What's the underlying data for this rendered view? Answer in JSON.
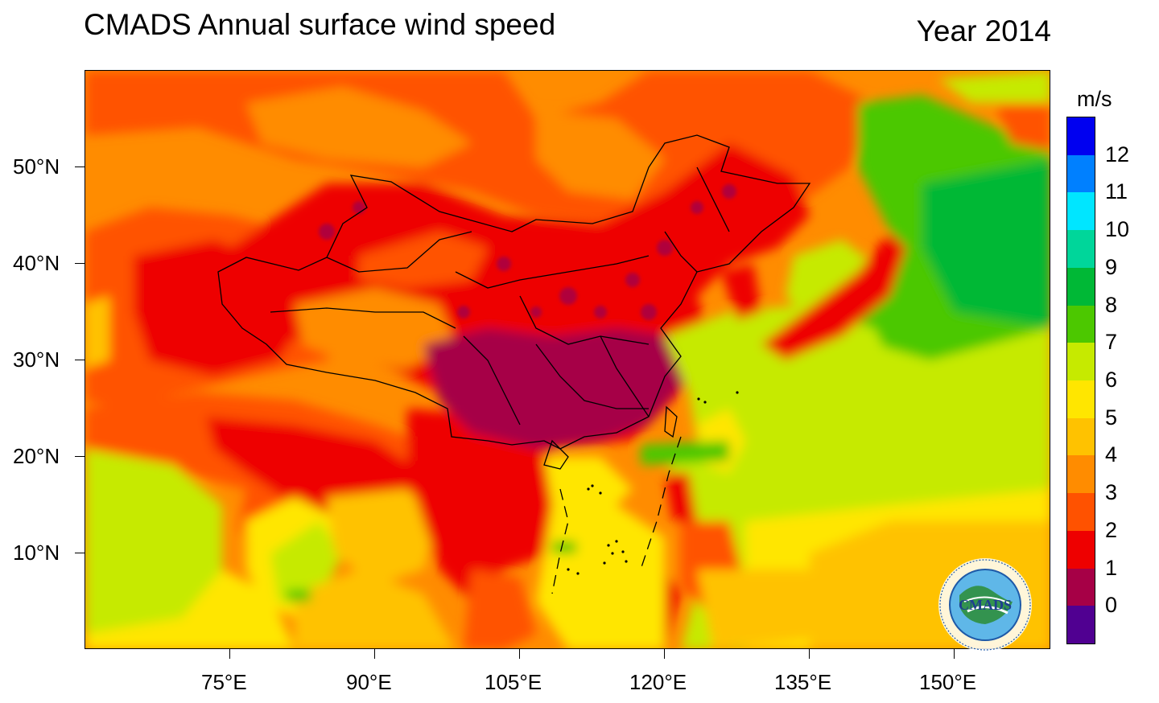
{
  "title": "CMADS Annual surface wind speed",
  "year_label": "Year 2014",
  "colorbar": {
    "unit": "m/s",
    "levels": [
      "12",
      "11",
      "10",
      "9",
      "8",
      "7",
      "6",
      "5",
      "4",
      "3",
      "2",
      "1",
      "0"
    ],
    "colors": [
      "#0000f0",
      "#0080ff",
      "#00e6ff",
      "#00d69a",
      "#00b836",
      "#4cc800",
      "#c6ea00",
      "#ffe600",
      "#ffc200",
      "#ff8c00",
      "#ff5200",
      "#ee0000",
      "#a60046",
      "#500091"
    ]
  },
  "axes": {
    "lon_labels": [
      "75°E",
      "90°E",
      "105°E",
      "120°E",
      "135°E",
      "150°E"
    ],
    "lat_labels": [
      "50°N",
      "40°N",
      "30°N",
      "20°N",
      "10°N"
    ]
  },
  "logo": {
    "text": "CMADS",
    "icon": "cmads-globe-logo-icon"
  },
  "map": {
    "extent": {
      "lon_min": 60,
      "lon_max": 160,
      "lat_min": 0,
      "lat_max": 60
    },
    "icon": "wind-speed-field-icon"
  }
}
